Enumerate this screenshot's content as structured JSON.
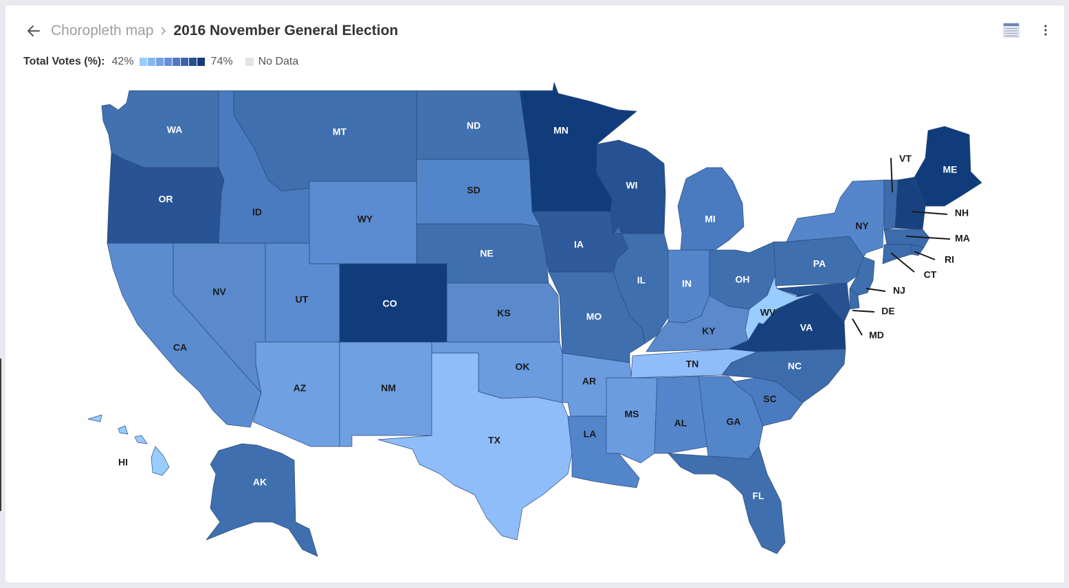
{
  "breadcrumb": {
    "parent": "Choropleth map",
    "current": "2016 November General Election"
  },
  "icons": {
    "back": "arrow-left-icon",
    "table": "table-icon",
    "more": "more-vertical-icon"
  },
  "legend": {
    "title": "Total Votes (%):",
    "min_label": "42%",
    "max_label": "74%",
    "no_data_label": "No Data",
    "ramp": [
      "#99ccff",
      "#88b7f0",
      "#76a2e0",
      "#658de0",
      "#5078c0",
      "#3c63a8",
      "#284f8f",
      "#143b7a"
    ],
    "no_data_color": "#e3e3e3"
  },
  "map_data": {
    "type": "choropleth",
    "metric": "Total Votes (%)",
    "range": [
      42,
      74
    ],
    "states": [
      {
        "code": "WA",
        "color": "#4271b0"
      },
      {
        "code": "OR",
        "color": "#285495"
      },
      {
        "code": "CA",
        "color": "#5c8cd0"
      },
      {
        "code": "NV",
        "color": "#5a89cc"
      },
      {
        "code": "ID",
        "color": "#4a7ac0"
      },
      {
        "code": "MT",
        "color": "#3f6fae"
      },
      {
        "code": "WY",
        "color": "#5b8bd0"
      },
      {
        "code": "UT",
        "color": "#5b8bd0"
      },
      {
        "code": "AZ",
        "color": "#6fa0e3"
      },
      {
        "code": "CO",
        "color": "#103c7c"
      },
      {
        "code": "NM",
        "color": "#6fa0e3"
      },
      {
        "code": "ND",
        "color": "#4271b0"
      },
      {
        "code": "SD",
        "color": "#5385cb"
      },
      {
        "code": "NE",
        "color": "#3f6fae"
      },
      {
        "code": "KS",
        "color": "#5a89cc"
      },
      {
        "code": "OK",
        "color": "#6b9ce0"
      },
      {
        "code": "TX",
        "color": "#8fbdfa"
      },
      {
        "code": "MN",
        "color": "#103c7c"
      },
      {
        "code": "IA",
        "color": "#2f5a9c"
      },
      {
        "code": "MO",
        "color": "#3f6fae"
      },
      {
        "code": "AR",
        "color": "#6b9ce0"
      },
      {
        "code": "LA",
        "color": "#5385cb"
      },
      {
        "code": "WI",
        "color": "#265192"
      },
      {
        "code": "IL",
        "color": "#3f6fae"
      },
      {
        "code": "MI",
        "color": "#4a7ac0"
      },
      {
        "code": "IN",
        "color": "#5586cc"
      },
      {
        "code": "OH",
        "color": "#3f6fae"
      },
      {
        "code": "KY",
        "color": "#5a89cc"
      },
      {
        "code": "TN",
        "color": "#8fbdfa"
      },
      {
        "code": "MS",
        "color": "#6b9ce0"
      },
      {
        "code": "AL",
        "color": "#5586cc"
      },
      {
        "code": "GA",
        "color": "#5385cb"
      },
      {
        "code": "FL",
        "color": "#3f6fae"
      },
      {
        "code": "SC",
        "color": "#4a7ac0"
      },
      {
        "code": "NC",
        "color": "#3c6cac"
      },
      {
        "code": "VA",
        "color": "#17427f"
      },
      {
        "code": "WV",
        "color": "#99ccff"
      },
      {
        "code": "PA",
        "color": "#3f6fae"
      },
      {
        "code": "NY",
        "color": "#5586cc"
      },
      {
        "code": "VT",
        "color": "#3c6cac"
      },
      {
        "code": "NH",
        "color": "#17427f"
      },
      {
        "code": "ME",
        "color": "#103c7c"
      },
      {
        "code": "MA",
        "color": "#3c6cac"
      },
      {
        "code": "RI",
        "color": "#3c6cac"
      },
      {
        "code": "CT",
        "color": "#3c6cac"
      },
      {
        "code": "NJ",
        "color": "#3f6fae"
      },
      {
        "code": "DE",
        "color": "#3c6cac"
      },
      {
        "code": "MD",
        "color": "#265192"
      },
      {
        "code": "AK",
        "color": "#3f6fae"
      },
      {
        "code": "HI",
        "color": "#99ccff"
      }
    ]
  }
}
